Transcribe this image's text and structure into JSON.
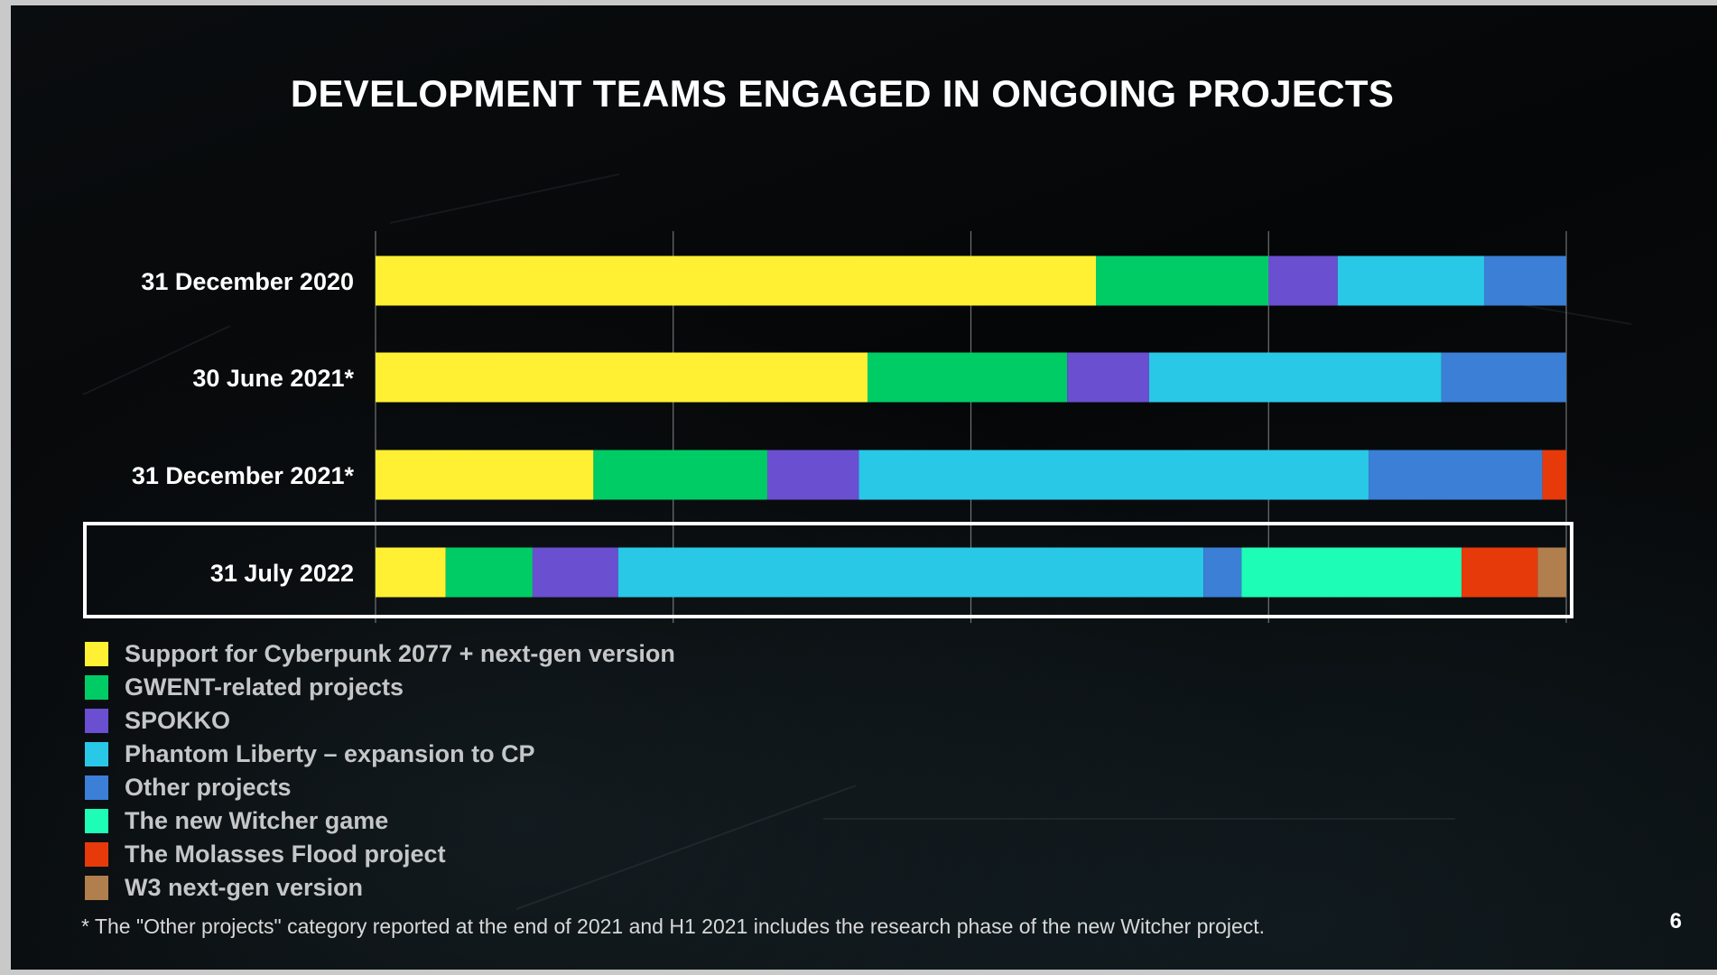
{
  "title": "DEVELOPMENT TEAMS ENGAGED IN ONGOING PROJECTS",
  "footnote": "* The \"Other projects\" category reported at the end of 2021 and H1 2021 includes the research phase of the new Witcher project.",
  "page_number": "6",
  "chart_data": {
    "type": "bar",
    "orientation": "horizontal",
    "stacked": "percent",
    "title": "DEVELOPMENT TEAMS ENGAGED IN ONGOING PROJECTS",
    "xlim": [
      0,
      100
    ],
    "grid": true,
    "highlighted_category": "31 July 2022",
    "categories": [
      "31 December 2020",
      "30 June 2021*",
      "31 December 2021*",
      "31 July 2022"
    ],
    "series": [
      {
        "name": "Support for Cyberpunk 2077 + next-gen version",
        "color": "#fff033",
        "values": [
          60.5,
          41.4,
          18.3,
          5.9
        ]
      },
      {
        "name": "GWENT-related projects",
        "color": "#00cc66",
        "values": [
          14.5,
          16.8,
          14.6,
          7.3
        ]
      },
      {
        "name": "SPOKKO",
        "color": "#6a4fd0",
        "values": [
          5.8,
          6.9,
          7.7,
          7.2
        ]
      },
      {
        "name": "Phantom Liberty – expansion to CP",
        "color": "#29c8e6",
        "values": [
          12.3,
          24.6,
          42.8,
          49.2
        ]
      },
      {
        "name": "Other projects",
        "color": "#3b7fd6",
        "values": [
          6.9,
          10.5,
          14.6,
          3.2
        ]
      },
      {
        "name": "The new Witcher game",
        "color": "#1dfdb6",
        "values": [
          0,
          0,
          0,
          18.5
        ]
      },
      {
        "name": "The Molasses Flood project",
        "color": "#e63a0a",
        "values": [
          0,
          0,
          2.0,
          6.4
        ]
      },
      {
        "name": "W3 next-gen version",
        "color": "#b17e4e",
        "values": [
          0,
          0,
          0,
          2.4
        ]
      }
    ]
  }
}
